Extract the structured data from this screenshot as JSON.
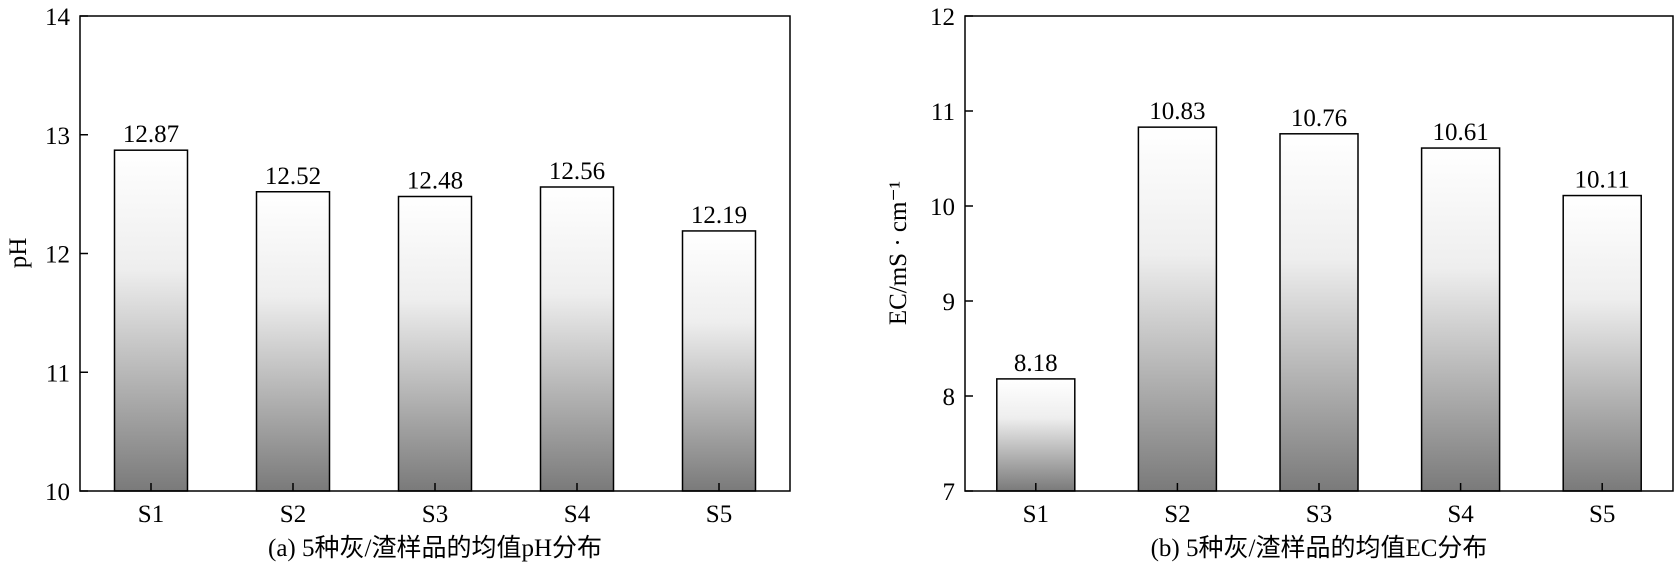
{
  "chart_data": [
    {
      "type": "bar",
      "categories": [
        "S1",
        "S2",
        "S3",
        "S4",
        "S5"
      ],
      "values": [
        12.87,
        12.52,
        12.48,
        12.56,
        12.19
      ],
      "value_labels": [
        "12.87",
        "12.52",
        "12.48",
        "12.56",
        "12.19"
      ],
      "ylabel": "pH",
      "xlabel": "",
      "ylim": [
        10,
        14
      ],
      "yticks": [
        10,
        11,
        12,
        13,
        14
      ],
      "caption": "(a) 5种灰/渣样品的均值pH分布",
      "grid": false,
      "bar_fill": "gradient white-to-gray",
      "gradient_top": "#ffffff",
      "gradient_bottom": "#7a7a7a"
    },
    {
      "type": "bar",
      "categories": [
        "S1",
        "S2",
        "S3",
        "S4",
        "S5"
      ],
      "values": [
        8.18,
        10.83,
        10.76,
        10.61,
        10.11
      ],
      "value_labels": [
        "8.18",
        "10.83",
        "10.76",
        "10.61",
        "10.11"
      ],
      "ylabel": "EC/mS · cm⁻¹",
      "xlabel": "",
      "ylim": [
        7,
        12
      ],
      "yticks": [
        7,
        8,
        9,
        10,
        11,
        12
      ],
      "caption": "(b) 5种灰/渣样品的均值EC分布",
      "grid": false,
      "bar_fill": "gradient white-to-gray",
      "gradient_top": "#ffffff",
      "gradient_bottom": "#7a7a7a"
    }
  ]
}
